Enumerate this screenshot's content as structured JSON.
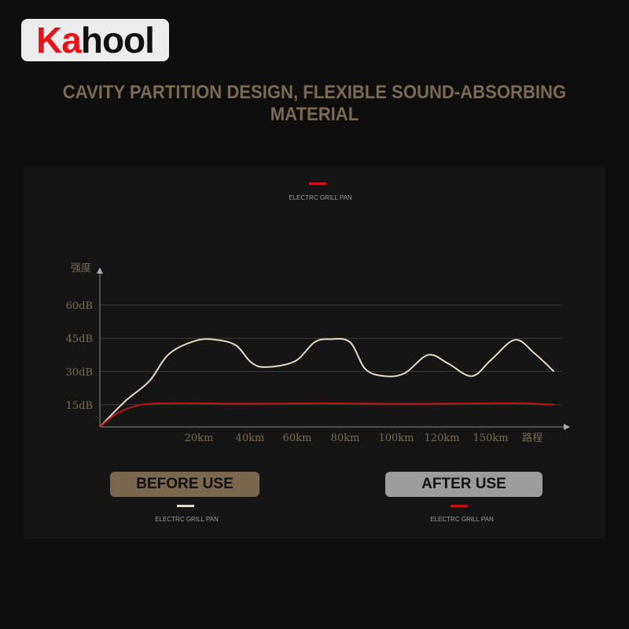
{
  "brand": {
    "logo_red": "Ka",
    "logo_black": "hool"
  },
  "headline": "CAVITY PARTITION DESIGN, FLEXIBLE SOUND-ABSORBING MATERIAL",
  "top_legend": {
    "label": "ELECTRC GRILL PAN",
    "color": "#d0111b"
  },
  "buttons": {
    "before": "BEFORE USE",
    "after": "AFTER USE"
  },
  "bottom_legends": [
    {
      "label": "ELECTRC GRILL PAN",
      "color": "#e6dcc6"
    },
    {
      "label": "ELECTRC GRILL PAN",
      "color": "#c0141c"
    }
  ],
  "chart_data": {
    "type": "line",
    "ylabel": "强度",
    "xlabel": "路程",
    "y_ticks": [
      "15dB",
      "30dB",
      "45dB",
      "60dB"
    ],
    "y_tick_values": [
      15,
      30,
      45,
      60
    ],
    "x_ticks": [
      "20km",
      "40km",
      "60km",
      "80km",
      "100km",
      "120km",
      "150km"
    ],
    "x_tick_values": [
      20,
      40,
      60,
      80,
      100,
      120,
      150
    ],
    "ylim": [
      5,
      77
    ],
    "grid": true,
    "series": [
      {
        "color": "#e6dcc6",
        "points": [
          [
            0,
            5
          ],
          [
            5.2,
            16.8
          ],
          [
            10,
            25.7
          ],
          [
            14,
            38
          ],
          [
            19.5,
            44
          ],
          [
            26.8,
            44.3
          ],
          [
            34.5,
            41.8
          ],
          [
            40.6,
            34
          ],
          [
            46.8,
            32
          ],
          [
            59,
            34.6
          ],
          [
            67.2,
            43.2
          ],
          [
            73.8,
            44.6
          ],
          [
            81.9,
            43.2
          ],
          [
            88,
            31
          ],
          [
            95.7,
            27.9
          ],
          [
            103.8,
            29.3
          ],
          [
            114,
            37.5
          ],
          [
            123.9,
            33.6
          ],
          [
            138.4,
            27.9
          ],
          [
            150.5,
            35.4
          ],
          [
            165,
            44.3
          ],
          [
            177,
            38.2
          ],
          [
            189,
            30
          ]
        ]
      },
      {
        "color": "#c0141c",
        "points": [
          [
            0,
            5
          ],
          [
            3.7,
            11.4
          ],
          [
            8.4,
            15
          ],
          [
            14.8,
            15.7
          ],
          [
            40,
            15.5
          ],
          [
            70,
            15.7
          ],
          [
            100,
            15.4
          ],
          [
            130,
            15.6
          ],
          [
            170,
            15.7
          ],
          [
            189,
            15
          ]
        ]
      }
    ]
  }
}
